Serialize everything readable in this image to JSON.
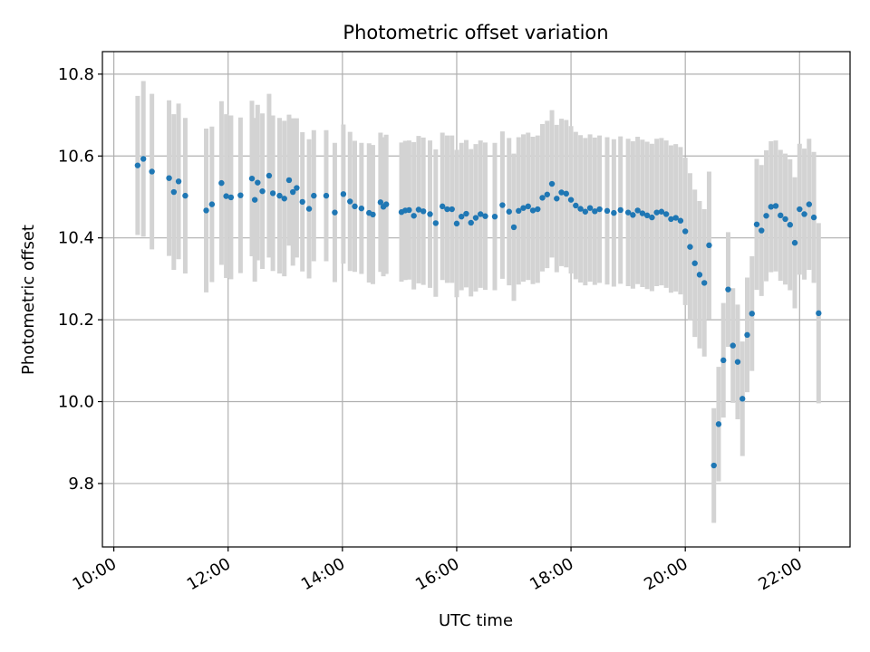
{
  "chart_data": {
    "type": "scatter",
    "title": "Photometric offset variation",
    "xlabel": "UTC time",
    "ylabel": "Photometric offset",
    "xlim": [
      "09:48",
      "22:53"
    ],
    "ylim": [
      9.645,
      10.855
    ],
    "x_ticks": [
      "10:00",
      "12:00",
      "14:00",
      "16:00",
      "18:00",
      "20:00",
      "22:00"
    ],
    "y_ticks": [
      "9.8",
      "10.0",
      "10.2",
      "10.4",
      "10.6",
      "10.8"
    ],
    "grid": true,
    "colors": {
      "points": "#1f77b4",
      "errorbars": "#d3d3d3",
      "grid": "#b0b0b0"
    },
    "series": [
      {
        "x": [
          "10:25",
          "10:31",
          "10:40",
          "10:58",
          "11:03",
          "11:08",
          "11:15",
          "11:37",
          "11:43",
          "11:53",
          "11:58",
          "12:03",
          "12:13",
          "12:25",
          "12:28",
          "12:31",
          "12:36",
          "12:43",
          "12:47",
          "12:54",
          "12:59",
          "13:04",
          "13:08",
          "13:12",
          "13:18",
          "13:25",
          "13:30",
          "13:43",
          "13:52",
          "14:01",
          "14:08",
          "14:13",
          "14:20",
          "14:28",
          "14:32",
          "14:40",
          "14:43",
          "14:46",
          "15:02",
          "15:06",
          "15:10",
          "15:15",
          "15:20",
          "15:25",
          "15:32",
          "15:38",
          "15:45",
          "15:50",
          "15:55",
          "16:00",
          "16:05",
          "16:10",
          "16:15",
          "16:20",
          "16:25",
          "16:30",
          "16:40",
          "16:48",
          "16:55",
          "17:00",
          "17:05",
          "17:10",
          "17:15",
          "17:20",
          "17:25",
          "17:30",
          "17:35",
          "17:40",
          "17:45",
          "17:50",
          "17:55",
          "18:00",
          "18:05",
          "18:10",
          "18:15",
          "18:20",
          "18:25",
          "18:30",
          "18:38",
          "18:45",
          "18:52",
          "19:00",
          "19:05",
          "19:10",
          "19:15",
          "19:20",
          "19:25",
          "19:30",
          "19:35",
          "19:40",
          "19:45",
          "19:50",
          "19:55",
          "20:00",
          "20:05",
          "20:10",
          "20:15",
          "20:20",
          "20:25",
          "20:30",
          "20:35",
          "20:40",
          "20:45",
          "20:50",
          "20:55",
          "21:00",
          "21:05",
          "21:10",
          "21:15",
          "21:20",
          "21:25",
          "21:30",
          "21:35",
          "21:40",
          "21:45",
          "21:50",
          "21:55",
          "22:00",
          "22:05",
          "22:10",
          "22:15",
          "22:20"
        ],
        "y": [
          10.577,
          10.593,
          10.562,
          10.546,
          10.512,
          10.538,
          10.503,
          10.467,
          10.482,
          10.534,
          10.502,
          10.499,
          10.504,
          10.545,
          10.493,
          10.535,
          10.514,
          10.552,
          10.509,
          10.503,
          10.496,
          10.541,
          10.512,
          10.522,
          10.488,
          10.471,
          10.503,
          10.503,
          10.462,
          10.507,
          10.489,
          10.477,
          10.472,
          10.461,
          10.457,
          10.487,
          10.476,
          10.482,
          10.463,
          10.467,
          10.468,
          10.454,
          10.469,
          10.465,
          10.458,
          10.436,
          10.477,
          10.47,
          10.47,
          10.435,
          10.452,
          10.459,
          10.437,
          10.449,
          10.458,
          10.453,
          10.452,
          10.48,
          10.464,
          10.426,
          10.466,
          10.473,
          10.477,
          10.467,
          10.47,
          10.498,
          10.506,
          10.532,
          10.496,
          10.511,
          10.508,
          10.493,
          10.479,
          10.471,
          10.464,
          10.473,
          10.465,
          10.47,
          10.466,
          10.461,
          10.468,
          10.462,
          10.456,
          10.467,
          10.46,
          10.455,
          10.45,
          10.462,
          10.464,
          10.458,
          10.446,
          10.449,
          10.442,
          10.416,
          10.378,
          10.338,
          10.31,
          10.29,
          10.382,
          9.844,
          9.945,
          10.101,
          10.274,
          10.137,
          10.097,
          10.007,
          10.163,
          10.215,
          10.433,
          10.418,
          10.454,
          10.476,
          10.478,
          10.455,
          10.446,
          10.432,
          10.388,
          10.47,
          10.458,
          10.482,
          10.45,
          10.216
        ],
        "y_err": [
          0.17,
          0.19,
          0.19,
          0.19,
          0.19,
          0.19,
          0.19,
          0.2,
          0.19,
          0.2,
          0.2,
          0.2,
          0.19,
          0.19,
          0.2,
          0.19,
          0.19,
          0.2,
          0.19,
          0.19,
          0.19,
          0.16,
          0.18,
          0.17,
          0.17,
          0.17,
          0.16,
          0.16,
          0.17,
          0.17,
          0.17,
          0.16,
          0.16,
          0.17,
          0.17,
          0.17,
          0.17,
          0.17,
          0.17,
          0.17,
          0.17,
          0.18,
          0.18,
          0.18,
          0.18,
          0.18,
          0.18,
          0.18,
          0.18,
          0.18,
          0.18,
          0.18,
          0.18,
          0.18,
          0.18,
          0.18,
          0.18,
          0.18,
          0.18,
          0.18,
          0.18,
          0.18,
          0.18,
          0.18,
          0.18,
          0.18,
          0.18,
          0.18,
          0.18,
          0.18,
          0.18,
          0.18,
          0.18,
          0.18,
          0.18,
          0.18,
          0.18,
          0.18,
          0.18,
          0.18,
          0.18,
          0.18,
          0.18,
          0.18,
          0.18,
          0.18,
          0.18,
          0.18,
          0.18,
          0.18,
          0.18,
          0.18,
          0.18,
          0.18,
          0.18,
          0.18,
          0.18,
          0.18,
          0.18,
          0.14,
          0.14,
          0.14,
          0.14,
          0.14,
          0.14,
          0.14,
          0.14,
          0.14,
          0.16,
          0.16,
          0.16,
          0.16,
          0.16,
          0.16,
          0.16,
          0.16,
          0.16,
          0.16,
          0.16,
          0.16,
          0.16,
          0.22
        ]
      }
    ]
  }
}
